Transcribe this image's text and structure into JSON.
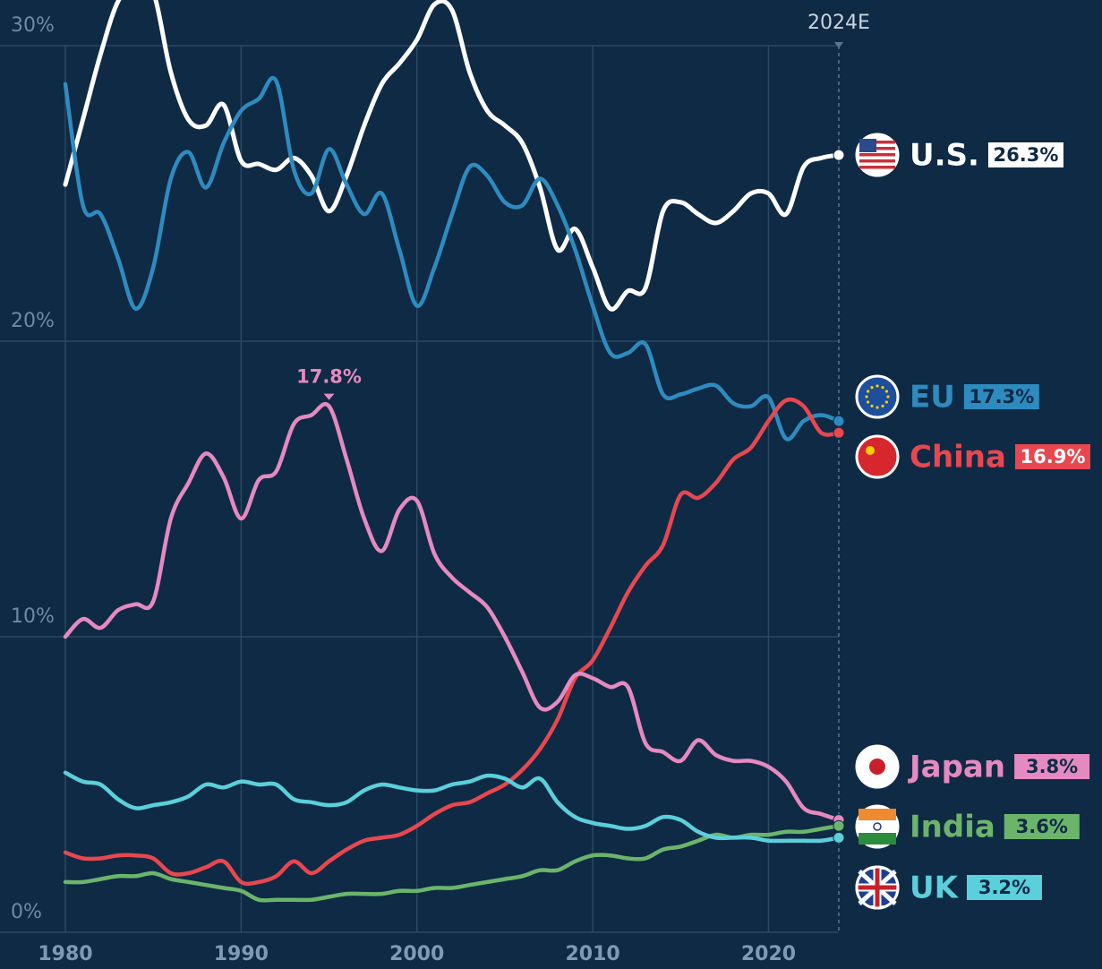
{
  "chart_data": {
    "type": "line",
    "x": [
      1980,
      1981,
      1982,
      1983,
      1984,
      1985,
      1986,
      1987,
      1988,
      1989,
      1990,
      1991,
      1992,
      1993,
      1994,
      1995,
      1996,
      1997,
      1998,
      1999,
      2000,
      2001,
      2002,
      2003,
      2004,
      2005,
      2006,
      2007,
      2008,
      2009,
      2010,
      2011,
      2012,
      2013,
      2014,
      2015,
      2016,
      2017,
      2018,
      2019,
      2020,
      2021,
      2022,
      2023,
      2024
    ],
    "xlim": [
      1980,
      2024
    ],
    "xticks": [
      1980,
      1990,
      2000,
      2010,
      2020
    ],
    "forecast_marker": {
      "value": 2024,
      "label": "2024E"
    },
    "ylim": [
      0,
      30
    ],
    "yticks": [
      {
        "value": 0,
        "label": "0%"
      },
      {
        "value": 10,
        "label": "10%"
      },
      {
        "value": 20,
        "label": "20%"
      },
      {
        "value": 30,
        "label": "30%"
      }
    ],
    "grid": true,
    "series": [
      {
        "name": "U.S.",
        "color": "#ffffff",
        "values": [
          25.3,
          27.5,
          29.7,
          31.5,
          32.0,
          31.8,
          29.1,
          27.5,
          27.3,
          28.0,
          26.1,
          26.0,
          25.8,
          26.2,
          25.6,
          24.4,
          25.6,
          27.3,
          28.7,
          29.4,
          30.2,
          31.4,
          31.2,
          29.1,
          27.8,
          27.3,
          26.7,
          25.2,
          23.1,
          23.8,
          22.5,
          21.1,
          21.7,
          21.8,
          24.4,
          24.7,
          24.3,
          24.0,
          24.4,
          25.0,
          25.0,
          24.3,
          25.9,
          26.2,
          26.3
        ],
        "value_labels": [
          null,
          null,
          null,
          null,
          null,
          null,
          null,
          null,
          null,
          null,
          null,
          null,
          null,
          null,
          null,
          null,
          null,
          null,
          null,
          null,
          null,
          null,
          null,
          null,
          null,
          null,
          null,
          null,
          null,
          null,
          null,
          null,
          null,
          null,
          null,
          null,
          null,
          null,
          null,
          null,
          null,
          null,
          null,
          null,
          "26.3%"
        ]
      },
      {
        "name": "EU",
        "color": "#2e8bc0",
        "values": [
          28.7,
          24.6,
          24.3,
          22.8,
          21.1,
          22.5,
          25.5,
          26.4,
          25.2,
          26.7,
          27.8,
          28.2,
          28.8,
          25.8,
          25.0,
          26.5,
          25.3,
          24.3,
          25.0,
          23.1,
          21.2,
          22.5,
          24.3,
          25.9,
          25.6,
          24.7,
          24.6,
          25.5,
          24.6,
          23.1,
          21.2,
          19.6,
          19.6,
          19.9,
          18.2,
          18.2,
          18.4,
          18.5,
          17.9,
          17.8,
          18.1,
          16.7,
          17.3,
          17.5,
          17.3
        ],
        "value_labels": [
          null,
          null,
          null,
          null,
          null,
          null,
          null,
          null,
          null,
          null,
          null,
          null,
          null,
          null,
          null,
          null,
          null,
          null,
          null,
          null,
          null,
          null,
          null,
          null,
          null,
          null,
          null,
          null,
          null,
          null,
          null,
          null,
          null,
          null,
          null,
          null,
          null,
          null,
          null,
          null,
          null,
          null,
          null,
          null,
          "17.3%"
        ]
      },
      {
        "name": "China",
        "color": "#e8474f",
        "values": [
          2.7,
          2.5,
          2.5,
          2.6,
          2.6,
          2.5,
          2.0,
          2.0,
          2.2,
          2.4,
          1.7,
          1.7,
          1.9,
          2.4,
          2.0,
          2.4,
          2.8,
          3.1,
          3.2,
          3.3,
          3.6,
          4.0,
          4.3,
          4.4,
          4.7,
          5.0,
          5.5,
          6.2,
          7.2,
          8.6,
          9.2,
          10.3,
          11.5,
          12.4,
          13.1,
          14.8,
          14.7,
          15.2,
          16.0,
          16.4,
          17.3,
          18.0,
          17.8,
          16.9,
          16.9
        ],
        "value_labels": [
          null,
          null,
          null,
          null,
          null,
          null,
          null,
          null,
          null,
          null,
          null,
          null,
          null,
          null,
          null,
          null,
          null,
          null,
          null,
          null,
          null,
          null,
          null,
          null,
          null,
          null,
          null,
          null,
          null,
          null,
          null,
          null,
          null,
          null,
          null,
          null,
          null,
          null,
          null,
          null,
          null,
          null,
          null,
          null,
          "16.9%"
        ]
      },
      {
        "name": "Japan",
        "color": "#e58ac0",
        "values": [
          10.0,
          10.6,
          10.3,
          10.9,
          11.1,
          11.2,
          14.0,
          15.2,
          16.2,
          15.4,
          14.0,
          15.3,
          15.6,
          17.2,
          17.5,
          17.8,
          16.0,
          14.0,
          12.9,
          14.3,
          14.6,
          12.8,
          12.0,
          11.5,
          11.0,
          10.0,
          8.8,
          7.6,
          7.8,
          8.7,
          8.6,
          8.3,
          8.3,
          6.4,
          6.1,
          5.8,
          6.5,
          6.0,
          5.8,
          5.8,
          5.6,
          5.1,
          4.2,
          4.0,
          3.8
        ],
        "value_labels": [
          null,
          null,
          null,
          null,
          null,
          null,
          null,
          null,
          null,
          null,
          null,
          null,
          null,
          null,
          null,
          "17.8%",
          null,
          null,
          null,
          null,
          null,
          null,
          null,
          null,
          null,
          null,
          null,
          null,
          null,
          null,
          null,
          null,
          null,
          null,
          null,
          null,
          null,
          null,
          null,
          null,
          null,
          null,
          null,
          null,
          "3.8%"
        ]
      },
      {
        "name": "India",
        "color": "#6bb56b",
        "values": [
          1.7,
          1.7,
          1.8,
          1.9,
          1.9,
          2.0,
          1.8,
          1.7,
          1.6,
          1.5,
          1.4,
          1.1,
          1.1,
          1.1,
          1.1,
          1.2,
          1.3,
          1.3,
          1.3,
          1.4,
          1.4,
          1.5,
          1.5,
          1.6,
          1.7,
          1.8,
          1.9,
          2.1,
          2.1,
          2.4,
          2.6,
          2.6,
          2.5,
          2.5,
          2.8,
          2.9,
          3.1,
          3.3,
          3.2,
          3.3,
          3.3,
          3.4,
          3.4,
          3.5,
          3.6
        ],
        "value_labels": [
          null,
          null,
          null,
          null,
          null,
          null,
          null,
          null,
          null,
          null,
          null,
          null,
          null,
          null,
          null,
          null,
          null,
          null,
          null,
          null,
          null,
          null,
          null,
          null,
          null,
          null,
          null,
          null,
          null,
          null,
          null,
          null,
          null,
          null,
          null,
          null,
          null,
          null,
          null,
          null,
          null,
          null,
          null,
          null,
          "3.6%"
        ]
      },
      {
        "name": "UK",
        "color": "#5bcfdc",
        "values": [
          5.4,
          5.1,
          5.0,
          4.5,
          4.2,
          4.3,
          4.4,
          4.6,
          5.0,
          4.9,
          5.1,
          5.0,
          5.0,
          4.5,
          4.4,
          4.3,
          4.4,
          4.8,
          5.0,
          4.9,
          4.8,
          4.8,
          5.0,
          5.1,
          5.3,
          5.2,
          4.9,
          5.2,
          4.4,
          3.9,
          3.7,
          3.6,
          3.5,
          3.6,
          3.9,
          3.8,
          3.4,
          3.2,
          3.2,
          3.2,
          3.1,
          3.1,
          3.1,
          3.1,
          3.2
        ],
        "value_labels": [
          null,
          null,
          null,
          null,
          null,
          null,
          null,
          null,
          null,
          null,
          null,
          null,
          null,
          null,
          null,
          null,
          null,
          null,
          null,
          null,
          null,
          null,
          null,
          null,
          null,
          null,
          null,
          null,
          null,
          null,
          null,
          null,
          null,
          null,
          null,
          null,
          null,
          null,
          null,
          null,
          null,
          null,
          null,
          null,
          "3.2%"
        ]
      }
    ]
  }
}
